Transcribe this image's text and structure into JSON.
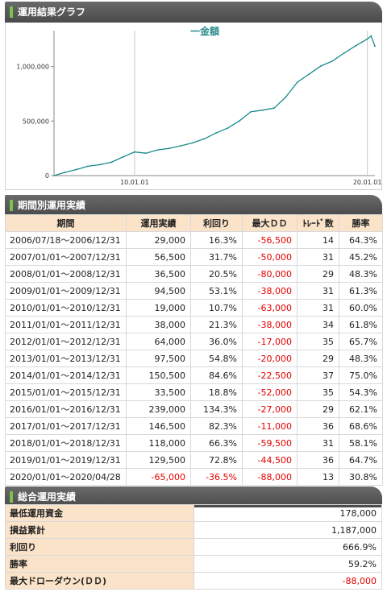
{
  "sections": {
    "chart_title": "運用結果グラフ",
    "period_title": "期間別運用実績",
    "summary_title": "総合運用実績"
  },
  "chart_data": {
    "type": "line",
    "title": "一金額",
    "x_ticks": [
      "10.01.01",
      "20.01.01"
    ],
    "y_ticks": [
      "0",
      "500,000",
      "1,000,000"
    ],
    "ylim": [
      0,
      1300000
    ],
    "x": [
      "2006/07/18",
      "2006/12/31",
      "2007/06/30",
      "2007/12/31",
      "2008/06/30",
      "2008/12/31",
      "2009/06/30",
      "2009/12/31",
      "2010/06/30",
      "2010/12/31",
      "2011/06/30",
      "2011/12/31",
      "2012/06/30",
      "2012/12/31",
      "2013/06/30",
      "2013/12/31",
      "2014/06/30",
      "2014/12/31",
      "2015/06/30",
      "2015/12/31",
      "2016/06/30",
      "2016/12/31",
      "2017/06/30",
      "2017/12/31",
      "2018/06/30",
      "2018/12/31",
      "2019/06/30",
      "2019/12/31",
      "2020/02/28",
      "2020/04/28"
    ],
    "y": [
      0,
      29000,
      55000,
      85500,
      100000,
      122000,
      170000,
      216500,
      205000,
      235500,
      250000,
      273500,
      300000,
      337500,
      390000,
      435000,
      500000,
      585500,
      600000,
      619000,
      720000,
      858000,
      930000,
      1004500,
      1050000,
      1122500,
      1190000,
      1252000,
      1280000,
      1187000
    ],
    "grid": "vertical"
  },
  "table": {
    "headers": [
      "期間",
      "運用実績",
      "利回り",
      "最大ＤＤ",
      "ﾄﾚｰﾄﾞ数",
      "勝率"
    ],
    "rows": [
      [
        "2006/07/18～2006/12/31",
        "29,000",
        "16.3%",
        "-56,500",
        "14",
        "64.3%"
      ],
      [
        "2007/01/01～2007/12/31",
        "56,500",
        "31.7%",
        "-50,000",
        "31",
        "45.2%"
      ],
      [
        "2008/01/01～2008/12/31",
        "36,500",
        "20.5%",
        "-80,000",
        "29",
        "48.3%"
      ],
      [
        "2009/01/01～2009/12/31",
        "94,500",
        "53.1%",
        "-38,000",
        "31",
        "61.3%"
      ],
      [
        "2010/01/01～2010/12/31",
        "19,000",
        "10.7%",
        "-63,000",
        "31",
        "60.0%"
      ],
      [
        "2011/01/01～2011/12/31",
        "38,000",
        "21.3%",
        "-38,000",
        "34",
        "61.8%"
      ],
      [
        "2012/01/01～2012/12/31",
        "64,000",
        "36.0%",
        "-17,000",
        "35",
        "65.7%"
      ],
      [
        "2013/01/01～2013/12/31",
        "97,500",
        "54.8%",
        "-20,000",
        "29",
        "48.3%"
      ],
      [
        "2014/01/01～2014/12/31",
        "150,500",
        "84.6%",
        "-22,500",
        "37",
        "75.0%"
      ],
      [
        "2015/01/01～2015/12/31",
        "33,500",
        "18.8%",
        "-52,000",
        "35",
        "54.3%"
      ],
      [
        "2016/01/01～2016/12/31",
        "239,000",
        "134.3%",
        "-27,000",
        "29",
        "62.1%"
      ],
      [
        "2017/01/01～2017/12/31",
        "146,500",
        "82.3%",
        "-11,000",
        "36",
        "68.6%"
      ],
      [
        "2018/01/01～2018/12/31",
        "118,000",
        "66.3%",
        "-59,500",
        "31",
        "58.1%"
      ],
      [
        "2019/01/01～2019/12/31",
        "129,500",
        "72.8%",
        "-44,500",
        "36",
        "64.7%"
      ],
      [
        "2020/01/01～2020/04/28",
        "-65,000",
        "-36.5%",
        "-88,000",
        "13",
        "30.8%"
      ]
    ]
  },
  "summary": [
    {
      "label": "最低運用資金",
      "value": "178,000"
    },
    {
      "label": "損益累計",
      "value": "1,187,000"
    },
    {
      "label": "利回り",
      "value": "666.9%"
    },
    {
      "label": "勝率",
      "value": "59.2%"
    },
    {
      "label": "最大ドローダウン(ＤＤ)",
      "value": "-88,000"
    }
  ],
  "colors": {
    "header_bg": "#555555",
    "accent": "#7cc24a",
    "table_header_bg": "#fbe3c9",
    "line": "#1a8a8a",
    "negative": "#e60000"
  }
}
